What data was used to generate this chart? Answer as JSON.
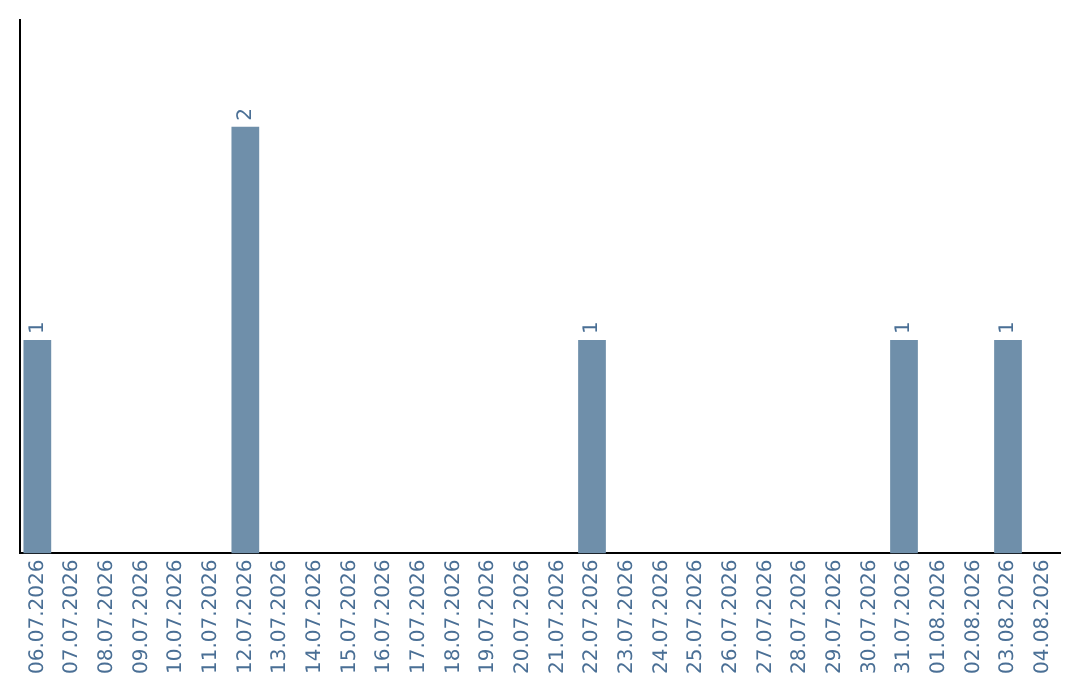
{
  "chart_data": {
    "type": "bar",
    "categories": [
      "06.07.2026",
      "07.07.2026",
      "08.07.2026",
      "09.07.2026",
      "10.07.2026",
      "11.07.2026",
      "12.07.2026",
      "13.07.2026",
      "14.07.2026",
      "15.07.2026",
      "16.07.2026",
      "17.07.2026",
      "18.07.2026",
      "19.07.2026",
      "20.07.2026",
      "21.07.2026",
      "22.07.2026",
      "23.07.2026",
      "24.07.2026",
      "25.07.2026",
      "26.07.2026",
      "27.07.2026",
      "28.07.2026",
      "29.07.2026",
      "30.07.2026",
      "31.07.2026",
      "01.08.2026",
      "02.08.2026",
      "03.08.2026",
      "04.08.2026"
    ],
    "values": [
      1,
      0,
      0,
      0,
      0,
      0,
      2,
      0,
      0,
      0,
      0,
      0,
      0,
      0,
      0,
      0,
      1,
      0,
      0,
      0,
      0,
      0,
      0,
      0,
      0,
      1,
      0,
      0,
      1,
      0
    ],
    "value_labels": [
      "1",
      null,
      null,
      null,
      null,
      null,
      "2",
      null,
      null,
      null,
      null,
      null,
      null,
      null,
      null,
      null,
      "1",
      null,
      null,
      null,
      null,
      null,
      null,
      null,
      null,
      "1",
      null,
      null,
      "1",
      null
    ],
    "color": "#6f8faa",
    "grid": false,
    "legend": false,
    "tick_labels": "x"
  }
}
